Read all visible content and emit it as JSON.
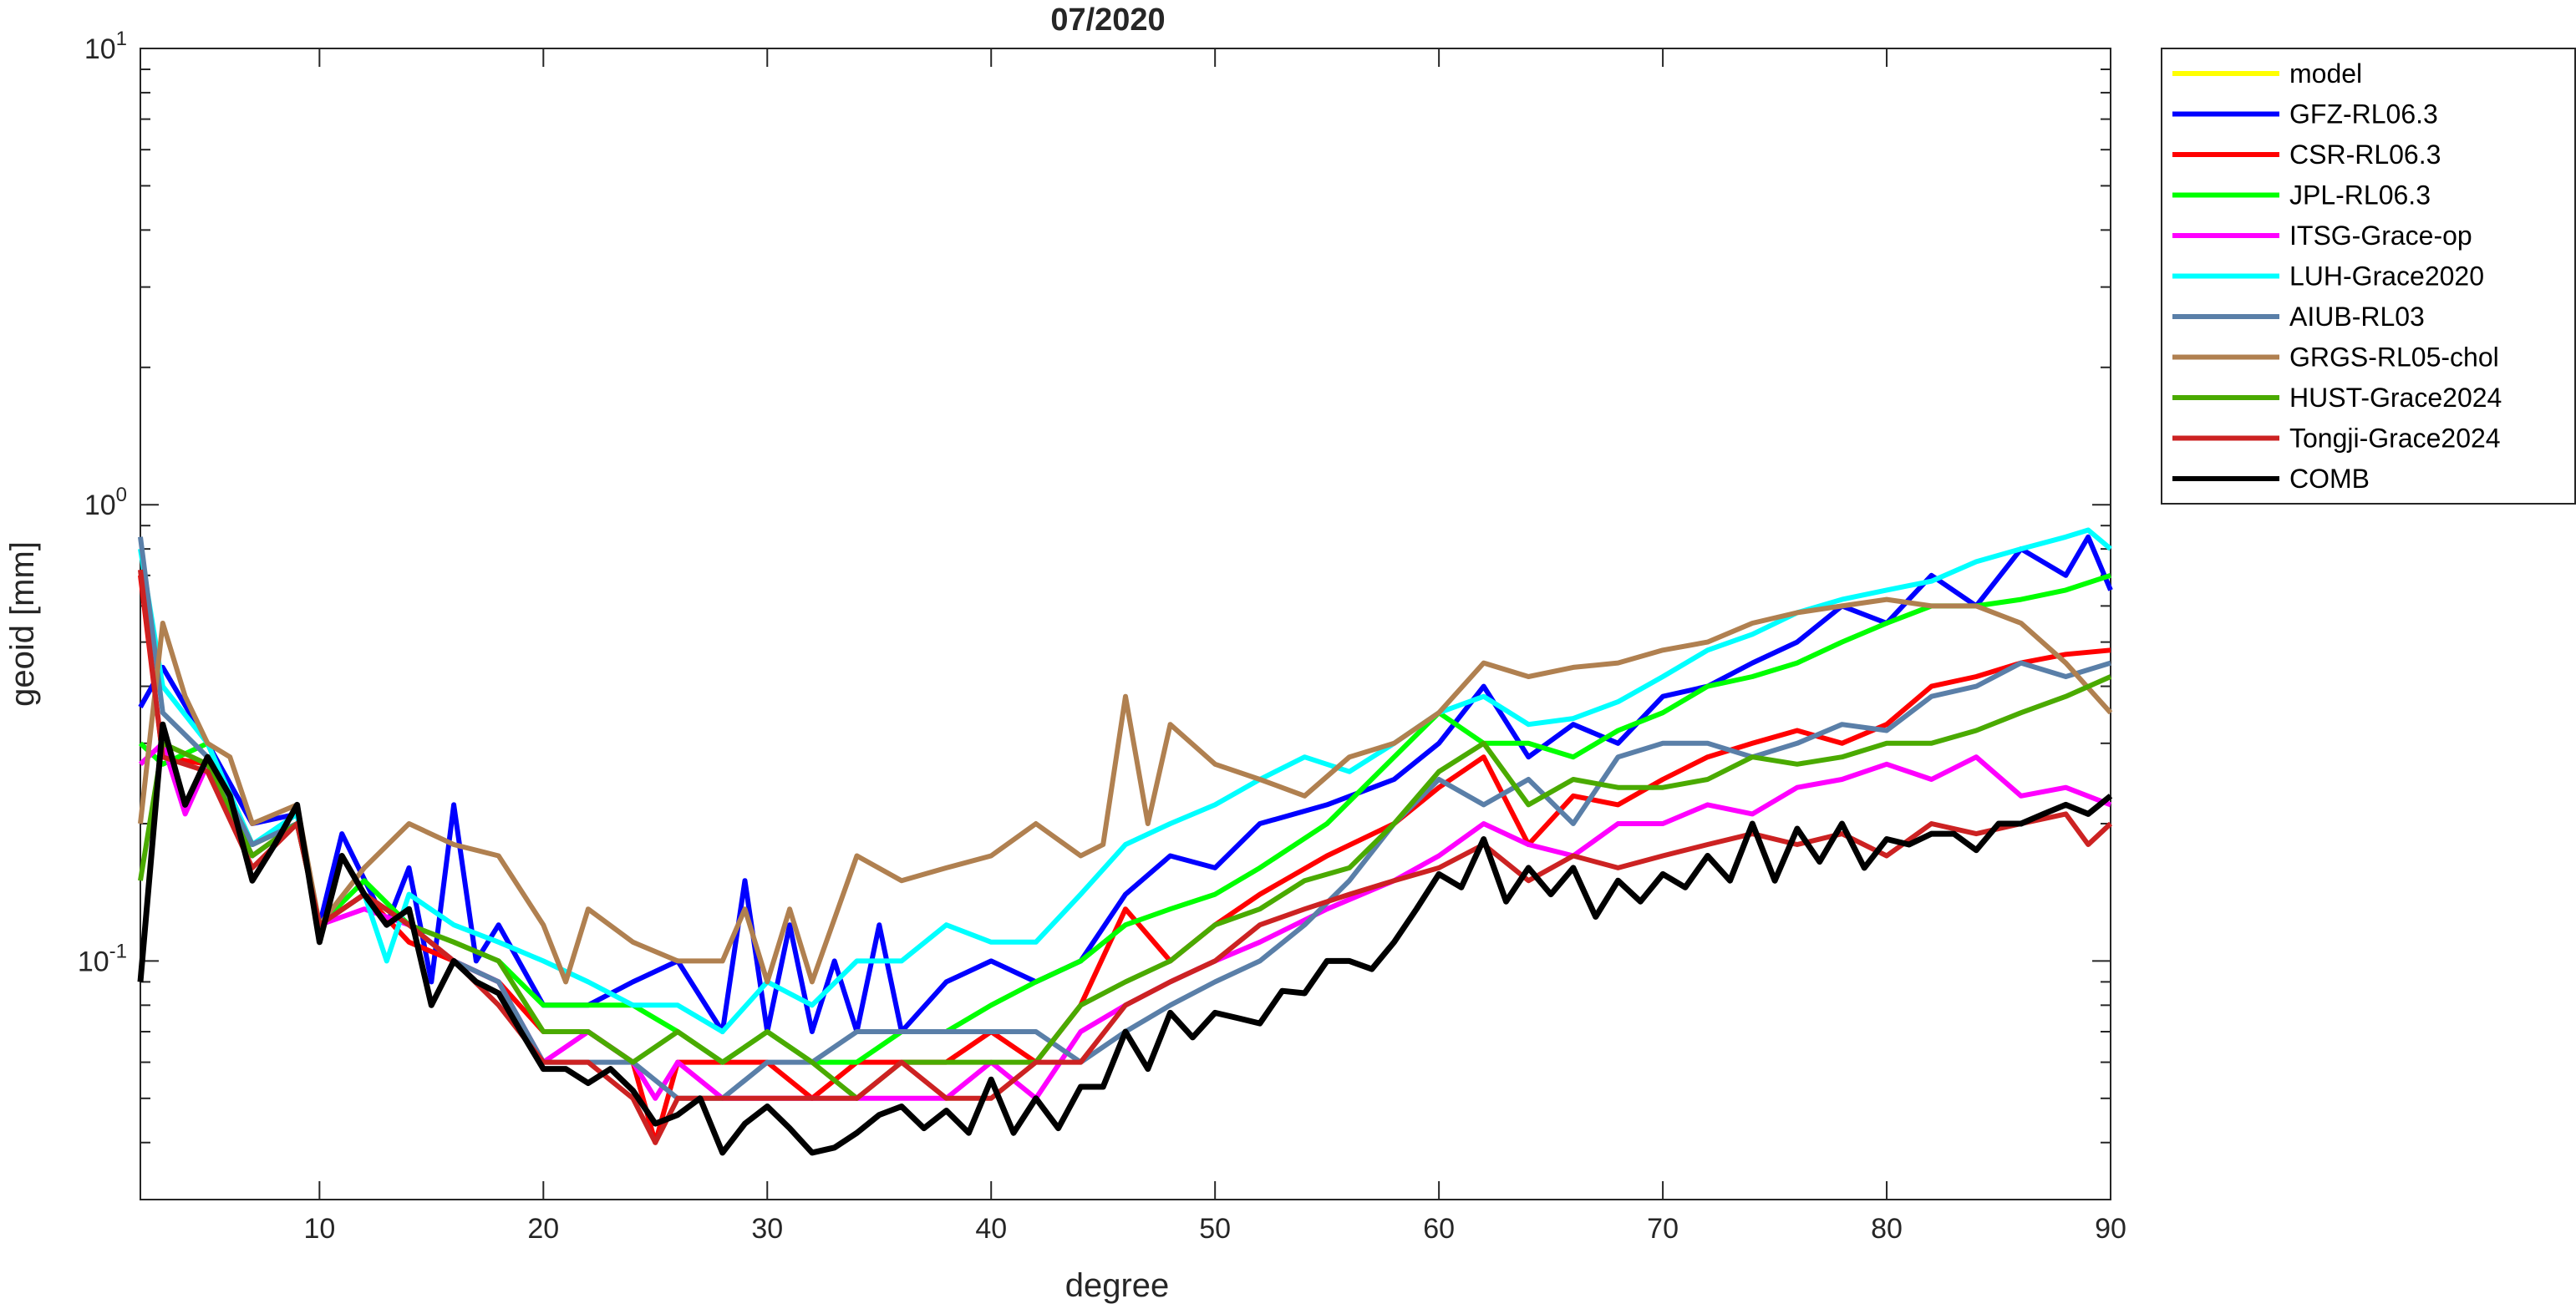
{
  "chart_data": {
    "type": "line",
    "title": "07/2020",
    "xlabel": "degree",
    "ylabel": "geoid [mm]",
    "xlim": [
      2,
      90
    ],
    "ylim": [
      0.03,
      10
    ],
    "yscale": "log",
    "grid": false,
    "legend_position": "outside-top-right",
    "x_ticks": [
      10,
      20,
      30,
      40,
      50,
      60,
      70,
      80,
      90
    ],
    "x_tick_labels": [
      "10",
      "20",
      "30",
      "40",
      "50",
      "60",
      "70",
      "80",
      "90"
    ],
    "y_ticks": [
      0.1,
      1,
      10
    ],
    "y_tick_labels": [
      {
        "base": "10",
        "exp": "-1"
      },
      {
        "base": "10",
        "exp": "0"
      },
      {
        "base": "10",
        "exp": "1"
      }
    ],
    "series": [
      {
        "name": "model",
        "color": "#ffff00",
        "x": [],
        "values": []
      },
      {
        "name": "GFZ-RL06.3",
        "color": "#0000ff",
        "x": [
          2,
          3,
          5,
          7,
          9,
          10,
          11,
          13,
          14,
          15,
          16,
          17,
          18,
          20,
          22,
          24,
          26,
          28,
          29,
          30,
          31,
          32,
          33,
          34,
          35,
          36,
          38,
          40,
          42,
          44,
          46,
          48,
          50,
          52,
          55,
          58,
          60,
          62,
          64,
          66,
          68,
          70,
          72,
          74,
          76,
          78,
          80,
          82,
          84,
          86,
          88,
          89,
          90
        ],
        "values": [
          0.36,
          0.44,
          0.3,
          0.2,
          0.21,
          0.12,
          0.19,
          0.12,
          0.16,
          0.09,
          0.22,
          0.1,
          0.12,
          0.08,
          0.08,
          0.09,
          0.1,
          0.07,
          0.15,
          0.07,
          0.12,
          0.07,
          0.1,
          0.07,
          0.12,
          0.07,
          0.09,
          0.1,
          0.09,
          0.1,
          0.14,
          0.17,
          0.16,
          0.2,
          0.22,
          0.25,
          0.3,
          0.4,
          0.28,
          0.33,
          0.3,
          0.38,
          0.4,
          0.45,
          0.5,
          0.6,
          0.55,
          0.7,
          0.6,
          0.8,
          0.7,
          0.85,
          0.65
        ]
      },
      {
        "name": "CSR-RL06.3",
        "color": "#ff0000",
        "x": [
          2,
          3,
          5,
          7,
          9,
          10,
          12,
          14,
          16,
          18,
          20,
          22,
          24,
          25,
          26,
          28,
          30,
          32,
          34,
          36,
          38,
          40,
          42,
          44,
          46,
          48,
          50,
          52,
          55,
          58,
          60,
          62,
          64,
          66,
          68,
          70,
          72,
          74,
          76,
          78,
          80,
          82,
          84,
          86,
          88,
          90
        ],
        "values": [
          0.7,
          0.28,
          0.27,
          0.18,
          0.2,
          0.12,
          0.14,
          0.11,
          0.1,
          0.09,
          0.07,
          0.07,
          0.06,
          0.04,
          0.06,
          0.06,
          0.06,
          0.05,
          0.06,
          0.06,
          0.06,
          0.07,
          0.06,
          0.08,
          0.13,
          0.1,
          0.12,
          0.14,
          0.17,
          0.2,
          0.24,
          0.28,
          0.18,
          0.23,
          0.22,
          0.25,
          0.28,
          0.3,
          0.32,
          0.3,
          0.33,
          0.4,
          0.42,
          0.45,
          0.47,
          0.48
        ]
      },
      {
        "name": "JPL-RL06.3",
        "color": "#00ff00",
        "x": [
          2,
          3,
          5,
          7,
          9,
          10,
          12,
          14,
          16,
          18,
          20,
          22,
          24,
          26,
          28,
          30,
          32,
          34,
          36,
          38,
          40,
          42,
          44,
          46,
          48,
          50,
          52,
          55,
          58,
          60,
          62,
          64,
          66,
          68,
          70,
          72,
          74,
          76,
          78,
          80,
          82,
          84,
          86,
          88,
          90
        ],
        "values": [
          0.3,
          0.27,
          0.3,
          0.18,
          0.2,
          0.12,
          0.15,
          0.12,
          0.11,
          0.1,
          0.08,
          0.08,
          0.08,
          0.07,
          0.06,
          0.07,
          0.06,
          0.06,
          0.07,
          0.07,
          0.08,
          0.09,
          0.1,
          0.12,
          0.13,
          0.14,
          0.16,
          0.2,
          0.28,
          0.35,
          0.3,
          0.3,
          0.28,
          0.32,
          0.35,
          0.4,
          0.42,
          0.45,
          0.5,
          0.55,
          0.6,
          0.6,
          0.62,
          0.65,
          0.7
        ]
      },
      {
        "name": "ITSG-Grace-op",
        "color": "#ff00ff",
        "x": [
          2,
          3,
          4,
          5,
          7,
          9,
          10,
          12,
          14,
          16,
          18,
          20,
          22,
          24,
          25,
          26,
          28,
          30,
          32,
          34,
          36,
          38,
          40,
          42,
          44,
          46,
          48,
          50,
          52,
          55,
          58,
          60,
          62,
          64,
          66,
          68,
          70,
          72,
          74,
          76,
          78,
          80,
          82,
          84,
          86,
          88,
          90
        ],
        "values": [
          0.27,
          0.3,
          0.21,
          0.27,
          0.17,
          0.2,
          0.12,
          0.13,
          0.12,
          0.1,
          0.09,
          0.06,
          0.07,
          0.06,
          0.05,
          0.06,
          0.05,
          0.05,
          0.05,
          0.05,
          0.05,
          0.05,
          0.06,
          0.05,
          0.07,
          0.08,
          0.09,
          0.1,
          0.11,
          0.13,
          0.15,
          0.17,
          0.2,
          0.18,
          0.17,
          0.2,
          0.2,
          0.22,
          0.21,
          0.24,
          0.25,
          0.27,
          0.25,
          0.28,
          0.23,
          0.24,
          0.22
        ]
      },
      {
        "name": "LUH-Grace2020",
        "color": "#00ffff",
        "x": [
          2,
          3,
          5,
          7,
          9,
          10,
          12,
          13,
          14,
          16,
          18,
          20,
          22,
          24,
          26,
          28,
          30,
          32,
          34,
          36,
          38,
          40,
          42,
          44,
          46,
          48,
          50,
          52,
          54,
          56,
          58,
          60,
          62,
          64,
          66,
          68,
          70,
          72,
          74,
          76,
          78,
          80,
          82,
          84,
          86,
          88,
          89,
          90
        ],
        "values": [
          0.8,
          0.4,
          0.3,
          0.18,
          0.21,
          0.12,
          0.14,
          0.1,
          0.14,
          0.12,
          0.11,
          0.1,
          0.09,
          0.08,
          0.08,
          0.07,
          0.09,
          0.08,
          0.1,
          0.1,
          0.12,
          0.11,
          0.11,
          0.14,
          0.18,
          0.2,
          0.22,
          0.25,
          0.28,
          0.26,
          0.3,
          0.35,
          0.38,
          0.33,
          0.34,
          0.37,
          0.42,
          0.48,
          0.52,
          0.58,
          0.62,
          0.65,
          0.68,
          0.75,
          0.8,
          0.85,
          0.88,
          0.8
        ]
      },
      {
        "name": "AIUB-RL03",
        "color": "#5a7fa8",
        "x": [
          2,
          3,
          5,
          7,
          9,
          10,
          12,
          14,
          16,
          18,
          20,
          22,
          24,
          26,
          28,
          30,
          32,
          34,
          36,
          38,
          40,
          42,
          44,
          46,
          48,
          50,
          52,
          54,
          56,
          58,
          60,
          62,
          64,
          66,
          68,
          70,
          72,
          74,
          76,
          78,
          80,
          82,
          84,
          86,
          88,
          90
        ],
        "values": [
          0.85,
          0.35,
          0.28,
          0.18,
          0.2,
          0.12,
          0.14,
          0.12,
          0.1,
          0.09,
          0.06,
          0.06,
          0.06,
          0.05,
          0.05,
          0.06,
          0.06,
          0.07,
          0.07,
          0.07,
          0.07,
          0.07,
          0.06,
          0.07,
          0.08,
          0.09,
          0.1,
          0.12,
          0.15,
          0.2,
          0.25,
          0.22,
          0.25,
          0.2,
          0.28,
          0.3,
          0.3,
          0.28,
          0.3,
          0.33,
          0.32,
          0.38,
          0.4,
          0.45,
          0.42,
          0.45
        ]
      },
      {
        "name": "GRGS-RL05-chol",
        "color": "#b08050",
        "x": [
          2,
          3,
          4,
          5,
          6,
          7,
          9,
          10,
          12,
          14,
          16,
          18,
          20,
          21,
          22,
          24,
          26,
          28,
          29,
          30,
          31,
          32,
          34,
          36,
          38,
          40,
          42,
          44,
          45,
          46,
          47,
          48,
          50,
          52,
          54,
          56,
          58,
          60,
          62,
          64,
          66,
          68,
          70,
          72,
          74,
          76,
          78,
          80,
          82,
          84,
          86,
          88,
          90
        ],
        "values": [
          0.2,
          0.55,
          0.38,
          0.3,
          0.28,
          0.2,
          0.22,
          0.12,
          0.16,
          0.2,
          0.18,
          0.17,
          0.12,
          0.09,
          0.13,
          0.11,
          0.1,
          0.1,
          0.13,
          0.09,
          0.13,
          0.09,
          0.17,
          0.15,
          0.16,
          0.17,
          0.2,
          0.17,
          0.18,
          0.38,
          0.2,
          0.33,
          0.27,
          0.25,
          0.23,
          0.28,
          0.3,
          0.35,
          0.45,
          0.42,
          0.44,
          0.45,
          0.48,
          0.5,
          0.55,
          0.58,
          0.6,
          0.62,
          0.6,
          0.6,
          0.55,
          0.45,
          0.35
        ]
      },
      {
        "name": "HUST-Grace2024",
        "color": "#4aaa00",
        "x": [
          2,
          3,
          5,
          7,
          9,
          10,
          12,
          14,
          16,
          18,
          20,
          22,
          24,
          26,
          28,
          30,
          32,
          34,
          36,
          38,
          40,
          42,
          44,
          46,
          48,
          50,
          52,
          54,
          56,
          58,
          60,
          62,
          64,
          66,
          68,
          70,
          72,
          74,
          76,
          78,
          80,
          82,
          84,
          86,
          88,
          90
        ],
        "values": [
          0.15,
          0.3,
          0.27,
          0.17,
          0.2,
          0.12,
          0.14,
          0.12,
          0.11,
          0.1,
          0.07,
          0.07,
          0.06,
          0.07,
          0.06,
          0.07,
          0.06,
          0.05,
          0.06,
          0.06,
          0.06,
          0.06,
          0.08,
          0.09,
          0.1,
          0.12,
          0.13,
          0.15,
          0.16,
          0.2,
          0.26,
          0.3,
          0.22,
          0.25,
          0.24,
          0.24,
          0.25,
          0.28,
          0.27,
          0.28,
          0.3,
          0.3,
          0.32,
          0.35,
          0.38,
          0.42
        ]
      },
      {
        "name": "Tongji-Grace2024",
        "color": "#cc2222",
        "x": [
          2,
          3,
          5,
          7,
          9,
          10,
          12,
          14,
          16,
          18,
          20,
          22,
          24,
          25,
          26,
          28,
          30,
          32,
          34,
          36,
          38,
          40,
          42,
          44,
          46,
          48,
          50,
          52,
          54,
          56,
          58,
          60,
          62,
          64,
          66,
          68,
          70,
          72,
          74,
          76,
          78,
          80,
          82,
          84,
          86,
          88,
          89,
          90
        ],
        "values": [
          0.72,
          0.28,
          0.26,
          0.16,
          0.2,
          0.12,
          0.14,
          0.12,
          0.1,
          0.08,
          0.06,
          0.06,
          0.05,
          0.04,
          0.05,
          0.05,
          0.05,
          0.05,
          0.05,
          0.06,
          0.05,
          0.05,
          0.06,
          0.06,
          0.08,
          0.09,
          0.1,
          0.12,
          0.13,
          0.14,
          0.15,
          0.16,
          0.18,
          0.15,
          0.17,
          0.16,
          0.17,
          0.18,
          0.19,
          0.18,
          0.19,
          0.17,
          0.2,
          0.19,
          0.2,
          0.21,
          0.18,
          0.2
        ]
      },
      {
        "name": "COMB",
        "color": "#000000",
        "x": [
          2,
          3,
          4,
          5,
          6,
          7,
          8,
          9,
          10,
          11,
          12,
          13,
          14,
          15,
          16,
          17,
          18,
          19,
          20,
          21,
          22,
          23,
          24,
          25,
          26,
          27,
          28,
          29,
          30,
          31,
          32,
          33,
          34,
          35,
          36,
          37,
          38,
          39,
          40,
          41,
          42,
          43,
          44,
          45,
          46,
          47,
          48,
          49,
          50,
          51,
          52,
          53,
          54,
          55,
          56,
          57,
          58,
          59,
          60,
          61,
          62,
          63,
          64,
          65,
          66,
          67,
          68,
          69,
          70,
          71,
          72,
          73,
          74,
          75,
          76,
          77,
          78,
          79,
          80,
          81,
          82,
          83,
          84,
          85,
          86,
          87,
          88,
          89,
          90
        ],
        "values": [
          0.09,
          0.33,
          0.22,
          0.28,
          0.23,
          0.15,
          0.18,
          0.22,
          0.11,
          0.17,
          0.14,
          0.12,
          0.13,
          0.08,
          0.1,
          0.09,
          0.085,
          0.07,
          0.058,
          0.058,
          0.054,
          0.058,
          0.052,
          0.044,
          0.046,
          0.05,
          0.038,
          0.044,
          0.048,
          0.043,
          0.038,
          0.039,
          0.042,
          0.046,
          0.048,
          0.043,
          0.047,
          0.042,
          0.055,
          0.042,
          0.05,
          0.043,
          0.053,
          0.053,
          0.07,
          0.058,
          0.077,
          0.068,
          0.077,
          0.075,
          0.073,
          0.086,
          0.085,
          0.1,
          0.1,
          0.096,
          0.11,
          0.13,
          0.155,
          0.145,
          0.185,
          0.135,
          0.16,
          0.14,
          0.16,
          0.125,
          0.15,
          0.135,
          0.155,
          0.145,
          0.17,
          0.15,
          0.2,
          0.15,
          0.195,
          0.165,
          0.2,
          0.16,
          0.185,
          0.18,
          0.19,
          0.19,
          0.175,
          0.2,
          0.2,
          0.21,
          0.22,
          0.21,
          0.23
        ]
      }
    ]
  }
}
